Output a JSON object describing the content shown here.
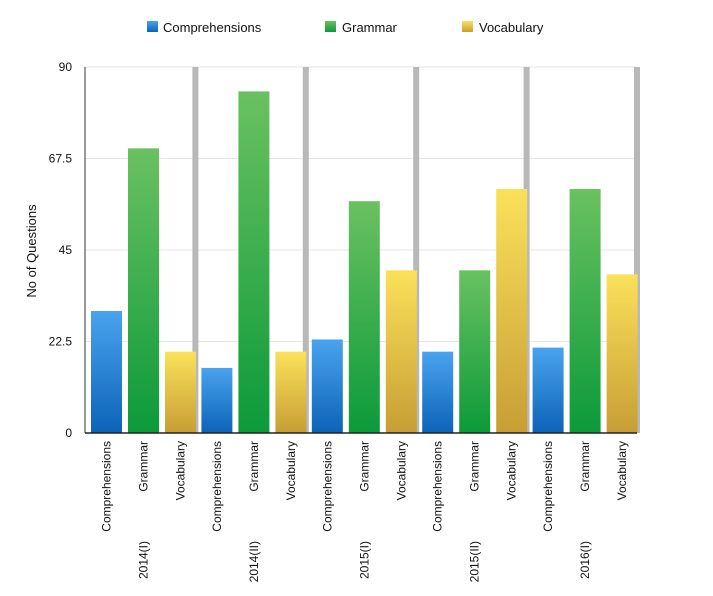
{
  "chart_data": {
    "type": "bar",
    "title": "",
    "xlabel": "",
    "ylabel": "No of Questions",
    "ylim": [
      0,
      90
    ],
    "yticks": [
      "0",
      "22.5",
      "45",
      "67.5",
      "90"
    ],
    "ytick_values": [
      0,
      22.5,
      45,
      67.5,
      90
    ],
    "grid": true,
    "legend_position": "top-center",
    "categories": [
      "2014(I)",
      "2014(II)",
      "2015(I)",
      "2015(II)",
      "2016(I)"
    ],
    "series": [
      {
        "name": "Comprehensions",
        "values": [
          30,
          16,
          23,
          20,
          21
        ],
        "color": "#1a73c9"
      },
      {
        "name": "Grammar",
        "values": [
          70,
          84,
          57,
          40,
          60
        ],
        "color": "#2aa33f"
      },
      {
        "name": "Vocabulary",
        "values": [
          20,
          20,
          40,
          60,
          39
        ],
        "color": "#e3bb3a"
      }
    ]
  }
}
